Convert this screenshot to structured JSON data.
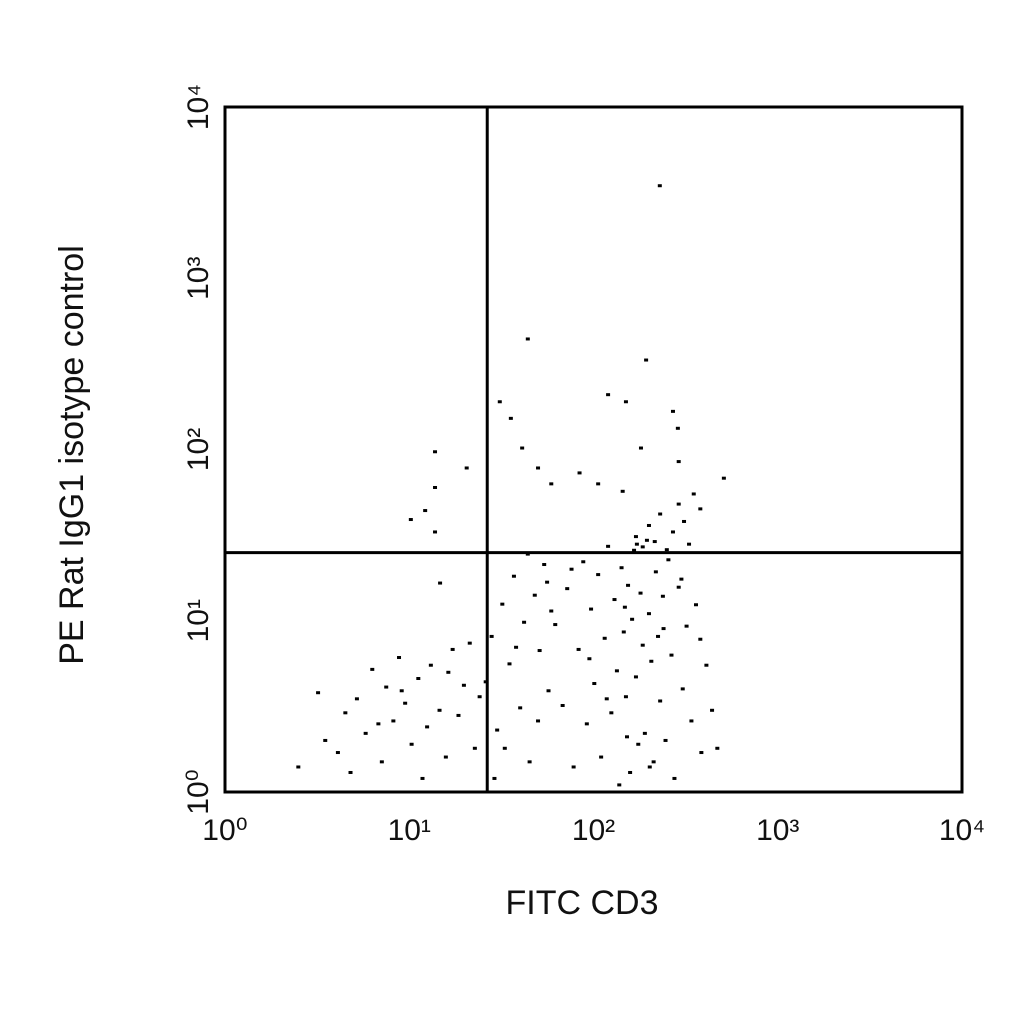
{
  "chart_data": {
    "type": "scatter",
    "x_label": "FITC CD3",
    "y_label": "PE Rat IgG1 isotype control",
    "log_x": true,
    "log_y": true,
    "xlim": [
      1,
      10000
    ],
    "ylim": [
      1,
      10000
    ],
    "xticks": [
      {
        "value": 1,
        "label": "10⁰"
      },
      {
        "value": 10,
        "label": "10¹"
      },
      {
        "value": 100,
        "label": "10²"
      },
      {
        "value": 1000,
        "label": "10³"
      },
      {
        "value": 10000,
        "label": "10⁴"
      }
    ],
    "yticks": [
      {
        "value": 1,
        "label": "10⁰"
      },
      {
        "value": 10,
        "label": "10¹"
      },
      {
        "value": 100,
        "label": "10²"
      },
      {
        "value": 1000,
        "label": "10³"
      },
      {
        "value": 10000,
        "label": "10⁴"
      }
    ],
    "quadrant_lines": {
      "x": 26.5,
      "y": 25
    },
    "series": [
      {
        "color": "#000000",
        "x": [
          2.5,
          3.2,
          3.5,
          4.1,
          4.5,
          5.2,
          5.8,
          6.3,
          7.1,
          7.5,
          8.2,
          8.8,
          9.5,
          10.3,
          11.2,
          12.5,
          13.1,
          14.6,
          15.8,
          17.2,
          18.5,
          19.8,
          21.3,
          22.7,
          24.1,
          4.8,
          6.8,
          9.1,
          11.8,
          16.3,
          26,
          28,
          30,
          32,
          35,
          37,
          40,
          42,
          45,
          48,
          51,
          54,
          57,
          59,
          33,
          38,
          44,
          50,
          56,
          29,
          62,
          68,
          72,
          78,
          83,
          88,
          92,
          97,
          101,
          106,
          110,
          115,
          120,
          125,
          130,
          134,
          138,
          142,
          146,
          150,
          154,
          158,
          162,
          166,
          170,
          175,
          180,
          185,
          190,
          195,
          200,
          206,
          212,
          218,
          224,
          230,
          238,
          246,
          255,
          265,
          275,
          290,
          305,
          320,
          340,
          360,
          385,
          410,
          440,
          470,
          76,
          95,
          118,
          148,
          172,
          202,
          240,
          300,
          380,
          152,
          170,
          185,
          200,
          215,
          230,
          250,
          270,
          290,
          310,
          330,
          350,
          380,
          229,
          44,
          193,
          120,
          150,
          31,
          35.6,
          270,
          287,
          41,
          181,
          13.8,
          290,
          20.5,
          50,
          84,
          510,
          59,
          106,
          13.8,
          144,
          12.2,
          10.2,
          13.8,
          14.7
        ],
        "y": [
          1.4,
          3.8,
          2.0,
          1.7,
          2.9,
          3.5,
          2.2,
          5.2,
          1.5,
          4.1,
          2.6,
          6.1,
          3.3,
          1.9,
          4.6,
          2.4,
          5.5,
          3.0,
          1.6,
          6.8,
          2.8,
          4.2,
          7.4,
          1.8,
          3.6,
          1.3,
          2.5,
          3.9,
          1.2,
          5.0,
          4.4,
          8.1,
          2.3,
          12.5,
          5.6,
          18.2,
          3.1,
          9.8,
          1.5,
          14.1,
          6.7,
          21.3,
          3.9,
          11.4,
          1.8,
          7.0,
          24.5,
          2.6,
          16.8,
          1.2,
          9.5,
          3.2,
          15.4,
          1.4,
          6.8,
          22.1,
          2.5,
          11.7,
          4.3,
          18.6,
          1.6,
          7.9,
          27.2,
          2.9,
          13.3,
          5.1,
          1.1,
          20.4,
          8.6,
          3.6,
          16.1,
          1.3,
          10.2,
          25.8,
          4.7,
          1.9,
          14.5,
          7.2,
          2.2,
          29.5,
          11.0,
          5.8,
          1.5,
          19.3,
          8.1,
          3.4,
          13.9,
          2.0,
          22.7,
          6.3,
          1.2,
          15.7,
          4.0,
          9.3,
          2.6,
          12.4,
          1.7,
          5.5,
          3.0,
          1.8,
          20.0,
          6.0,
          3.5,
          12.0,
          28.0,
          1.4,
          9.0,
          17.5,
          7.8,
          2.1,
          31,
          27,
          36,
          29,
          42,
          26,
          33,
          48,
          38,
          28,
          55,
          45,
          3470,
          442,
          333,
          209,
          190,
          190,
          152,
          167,
          133,
          102,
          102,
          97,
          85,
          78,
          78,
          73,
          68,
          63,
          63,
          60,
          57,
          44,
          39,
          33,
          16.6
        ]
      }
    ]
  }
}
